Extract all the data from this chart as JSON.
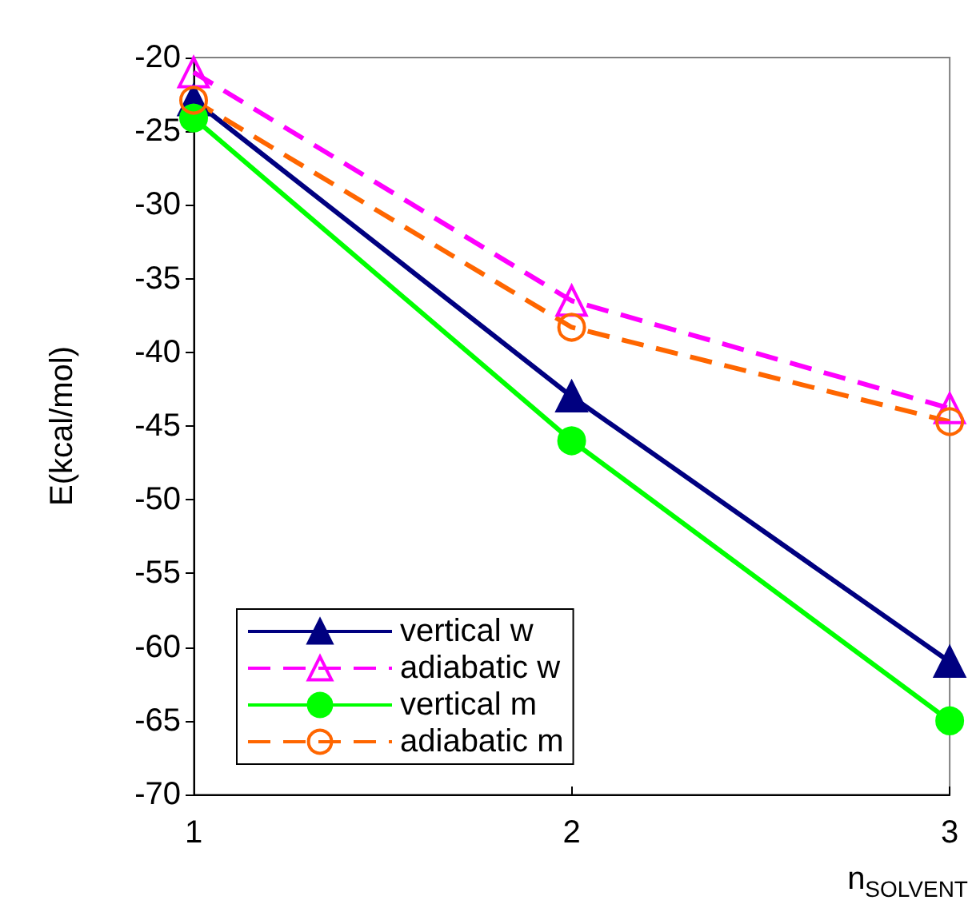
{
  "chart_data": {
    "type": "line",
    "xlabel": "n$_{SOLVENT}$",
    "ylabel": "E(kcal/mol)",
    "x": [
      1,
      2,
      3
    ],
    "xlim": [
      1,
      3
    ],
    "xticks": [
      1,
      2,
      3
    ],
    "ylim": [
      -70,
      -20
    ],
    "yticks": [
      -70,
      -65,
      -60,
      -55,
      -50,
      -45,
      -40,
      -35,
      -30,
      -25,
      -20
    ],
    "grid": false,
    "legend": "bottom left",
    "series": [
      {
        "name": "vertical w",
        "color": "#000080",
        "values": [
          -22.9,
          -43,
          -61
        ],
        "marker": "triangle",
        "line_style": "solid"
      },
      {
        "name": "adiabatic w",
        "color": "#ff00ff",
        "values": [
          -21,
          -36.5,
          -43.8
        ],
        "marker": "triangle",
        "line_style": "dashed"
      },
      {
        "name": "vertical m",
        "color": "#00ff00",
        "values": [
          -24.1,
          -46,
          -65
        ],
        "marker": "circle",
        "line_style": "solid"
      },
      {
        "name": "adiabatic m",
        "color": "#ff6600",
        "values": [
          -22.9,
          -38.3,
          -44.7
        ],
        "marker": "circle",
        "line_style": "dashed"
      }
    ]
  }
}
